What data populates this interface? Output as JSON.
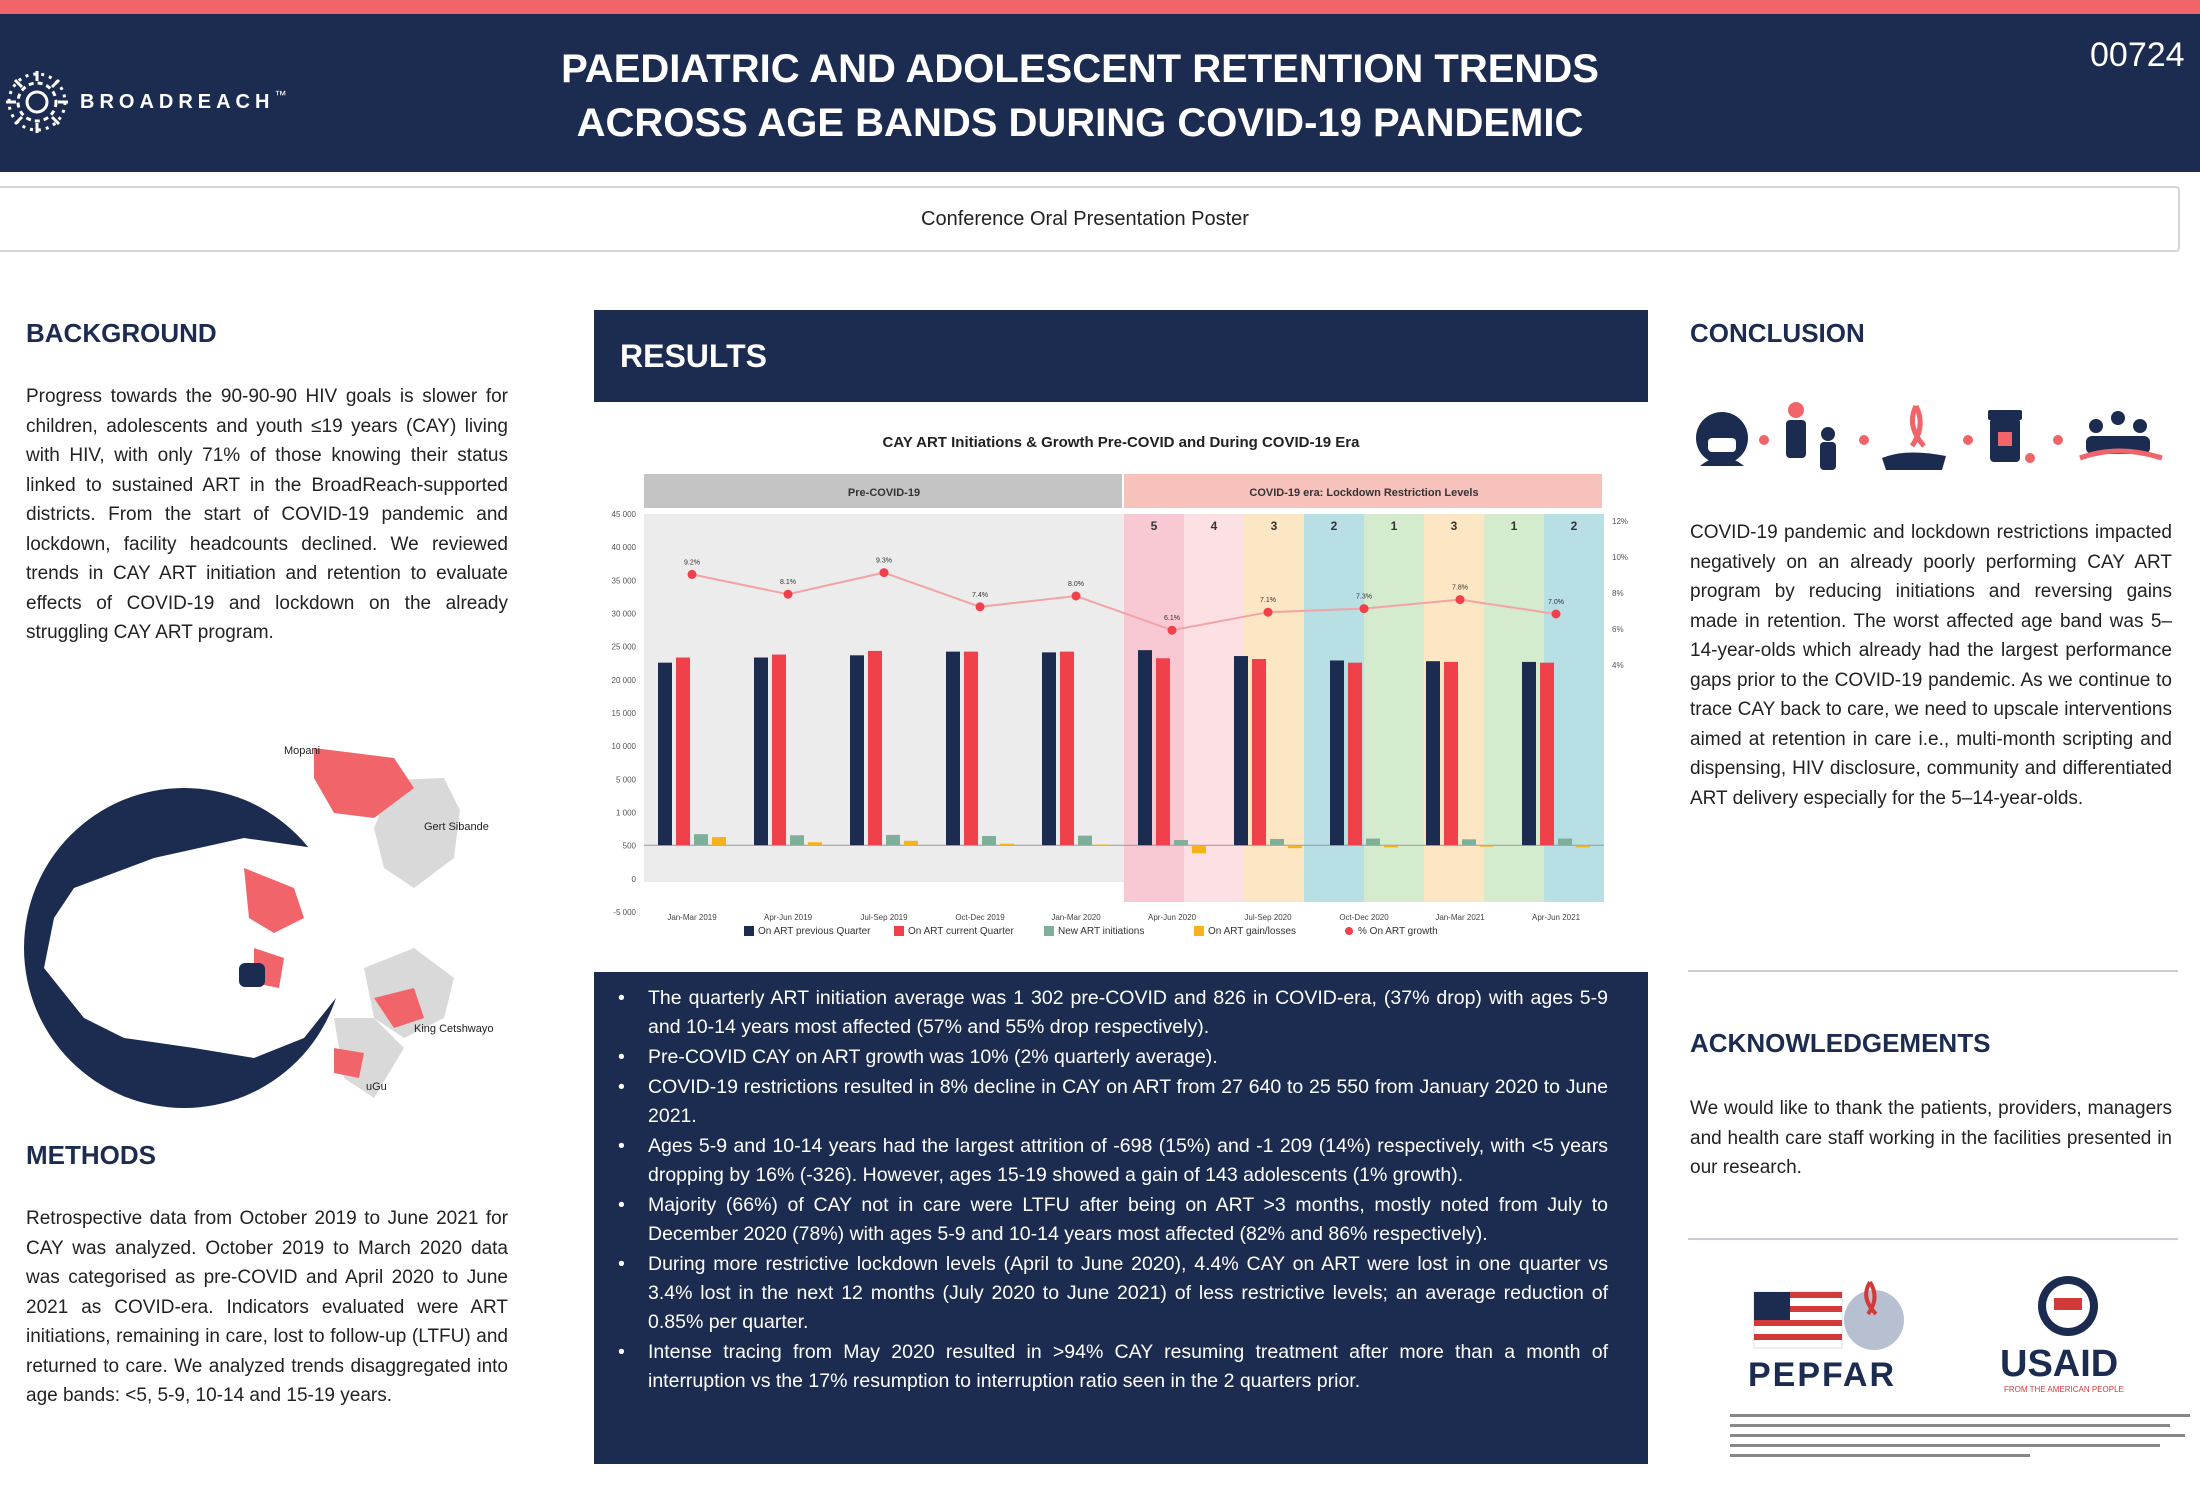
{
  "header": {
    "logo_text": "BROADREACH",
    "logo_tm": "™",
    "title_line1": "PAEDIATRIC AND ADOLESCENT RETENTION TRENDS",
    "title_line2": "ACROSS AGE BANDS DURING COVID-19 PANDEMIC",
    "poster_id": "00724",
    "subtitle": "Conference Oral Presentation Poster"
  },
  "background": {
    "heading": "BACKGROUND",
    "text": "Progress towards the 90-90-90 HIV goals is slower for children, adolescents and youth ≤19 years (CAY) living with HIV, with only 71% of those knowing their status linked to sustained ART in the BroadReach-supported districts. From the start of COVID-19 pandemic and lockdown, facility headcounts declined. We reviewed trends in CAY ART initiation and retention to evaluate effects of COVID-19 and lockdown on the already struggling CAY ART program."
  },
  "map": {
    "labels": [
      "Mopani",
      "Gert Sibande",
      "King Cetshwayo",
      "uGu"
    ],
    "colors": {
      "highlight": "#f0646a",
      "ocean": "#1c2b50",
      "land": "#ffffff",
      "neighbour": "#d9d9d9"
    }
  },
  "methods": {
    "heading": "METHODS",
    "text": "Retrospective data from October 2019 to June 2021 for CAY was analyzed. October 2019 to March 2020 data was categorised as pre-COVID and April 2020 to June 2021 as COVID-era. Indicators evaluated were ART initiations, remaining in care, lost to follow-up (LTFU) and returned to care. We analyzed trends disaggregated into age bands: <5, 5-9, 10-14 and 15-19 years."
  },
  "results": {
    "heading": "RESULTS",
    "bullets": [
      "The quarterly ART initiation average was 1 302 pre-COVID and 826 in COVID-era, (37% drop) with ages 5-9 and 10-14 years most affected (57% and 55% drop respectively).",
      "Pre-COVID CAY on ART growth was 10% (2% quarterly average).",
      "COVID-19 restrictions resulted in 8% decline in CAY on ART from 27 640 to 25 550 from January 2020 to June 2021.",
      "Ages 5-9 and 10-14 years had the largest attrition of -698 (15%) and -1 209 (14%) respectively, with <5 years dropping by 16% (-326). However, ages 15-19 showed a gain of 143 adolescents (1% growth).",
      "Majority (66%) of CAY not in care were LTFU after being on ART >3 months, mostly noted from July to December 2020 (78%) with ages 5-9 and 10-14 years most affected (82% and 86% respectively).",
      "During more restrictive lockdown levels (April to June 2020), 4.4% CAY on ART were lost in one quarter vs 3.4% lost in the next 12 months (July 2020 to June 2021) of less restrictive levels; an average reduction of 0.85% per quarter.",
      "Intense tracing from May 2020 resulted in >94% CAY resuming treatment after more than a month of interruption vs the 17% resumption to interruption ratio seen in the 2 quarters prior."
    ]
  },
  "chart_data": {
    "type": "bar",
    "title": "CAY ART Initiations & Growth Pre-COVID and During COVID-19 Era",
    "categories": [
      "Jan-Mar 2019",
      "Apr-Jun 2019",
      "Jul-Sep 2019",
      "Oct-Dec 2019",
      "Jan-Mar 2020",
      "Apr-Jun 2020",
      "Jul-Sep 2020",
      "Oct-Dec 2020",
      "Jan-Mar 2021",
      "Apr-Jun 2021"
    ],
    "eras": [
      {
        "label": "Pre-COVID-19",
        "from": 0,
        "to": 4,
        "color": "#c4c4c4"
      },
      {
        "label": "COVID-19 era: Lockdown Restriction Levels",
        "from": 5,
        "to": 9,
        "color": "#f7c2bb"
      }
    ],
    "lockdown_levels": [
      {
        "label": "5",
        "color": "#f9c9d3"
      },
      {
        "label": "4",
        "color": "#fde0e4"
      },
      {
        "label": "3",
        "color": "#fde6c3"
      },
      {
        "label": "2",
        "color": "#b7dfe4"
      },
      {
        "label": "1",
        "color": "#d5ebcd"
      },
      {
        "label": "3",
        "color": "#fde6c3"
      },
      {
        "label": "1",
        "color": "#d5ebcd"
      },
      {
        "label": "2",
        "color": "#b7dfe4"
      }
    ],
    "y_ticks": [
      "45 000",
      "40 000",
      "35 000",
      "30 000",
      "25 000",
      "20 000",
      "15 000",
      "10 000",
      "5 000",
      "1 000",
      "500",
      "0",
      "-5 000"
    ],
    "y2_ticks": [
      "12%",
      "10%",
      "8%",
      "6%",
      "4%"
    ],
    "ylim": [
      -5000,
      45000
    ],
    "series": [
      {
        "name": "On ART previous Quarter",
        "color": "#1c2b50",
        "values": [
          24800,
          25500,
          25800,
          26300,
          26200,
          26500,
          25700,
          25100,
          25000,
          24900
        ]
      },
      {
        "name": "On ART current Quarter",
        "color": "#f0404a",
        "values": [
          25500,
          25900,
          26400,
          26300,
          26300,
          25400,
          25300,
          24800,
          24900,
          24800
        ]
      },
      {
        "name": "New ART initiations",
        "color": "#7fae9a",
        "values": [
          1500,
          1350,
          1400,
          1250,
          1300,
          700,
          850,
          900,
          800,
          900
        ]
      },
      {
        "name": "On ART gain/losses",
        "color": "#f5b21b",
        "values": [
          1100,
          400,
          600,
          200,
          100,
          -1100,
          -400,
          -300,
          -100,
          -300
        ]
      }
    ],
    "growth": {
      "name": "% On ART growth",
      "color": "#f0404a",
      "values": [
        9.2,
        8.1,
        9.3,
        7.4,
        8.0,
        6.1,
        7.1,
        7.3,
        7.8,
        7.0
      ],
      "labels": [
        "9.2%",
        "8.1%",
        "9.3%",
        "7.4%",
        "8.0%",
        "6.1%",
        "7.1%",
        "7.3%",
        "7.8%",
        "7.0%"
      ],
      "range": [
        4,
        12
      ]
    },
    "legend_position": "bottom"
  },
  "conclusion": {
    "heading": "CONCLUSION",
    "icons": [
      "health-worker-icon",
      "family-icon",
      "ribbon-hand-icon",
      "medicine-icon",
      "community-icon"
    ],
    "text": "COVID-19 pandemic and lockdown restrictions impacted negatively on an already poorly performing CAY ART program by reducing initiations and reversing gains made in retention. The worst affected age band was 5–14-year-olds which already had the largest performance gaps prior to the COVID-19 pandemic. As we continue to trace CAY back to care, we need to upscale interventions aimed at retention in care i.e., multi-month scripting and dispensing, HIV disclosure, community and differentiated ART delivery especially for the 5–14-year-olds."
  },
  "acknowledgements": {
    "heading": "ACKNOWLEDGEMENTS",
    "text": "We would like to thank the patients, providers, managers and health care staff working in the facilities presented in our research."
  },
  "sponsors": {
    "pepfar": "PEPFAR",
    "usaid": "USAID",
    "usaid_tagline": "FROM THE AMERICAN PEOPLE"
  },
  "colors": {
    "navy": "#1c2b50",
    "coral": "#f0646a"
  }
}
